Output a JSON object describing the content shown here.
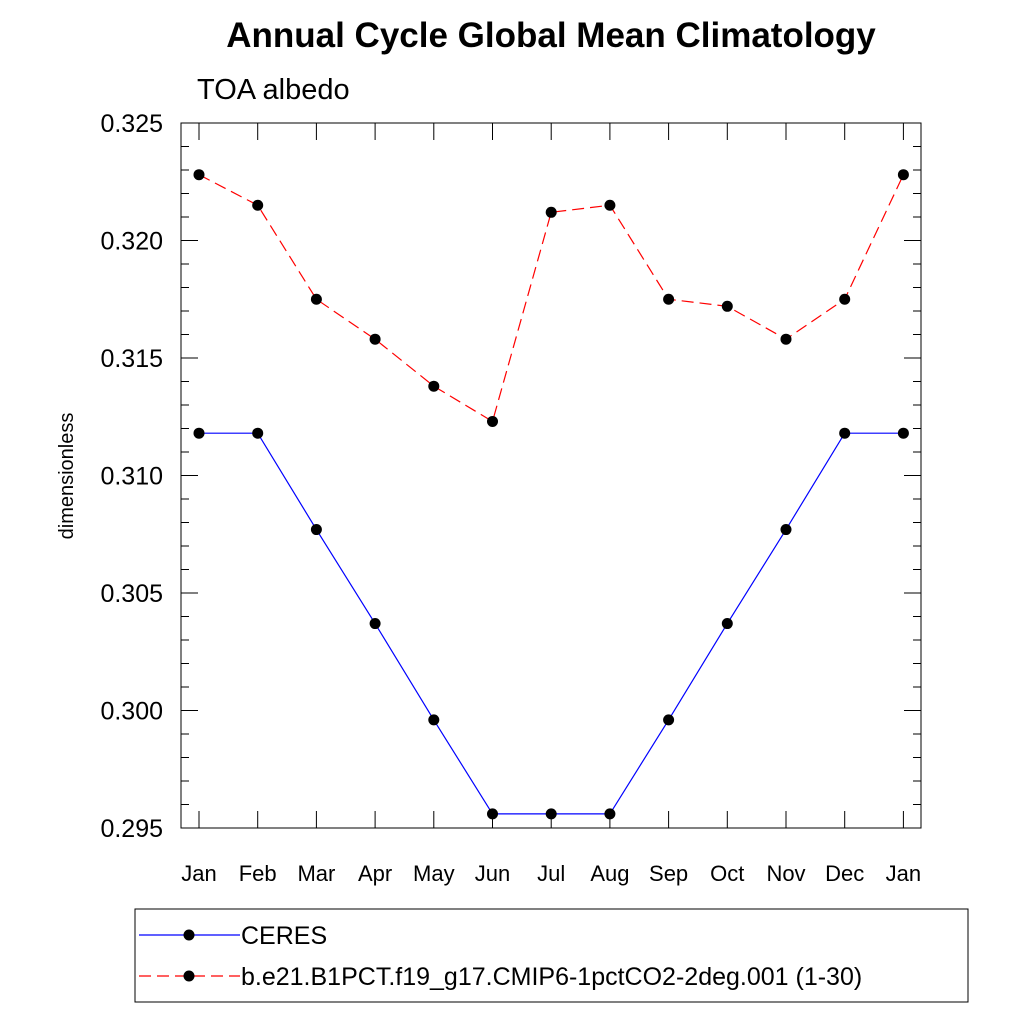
{
  "chart_data": {
    "type": "line",
    "title": "Annual Cycle Global Mean Climatology",
    "subtitle": "TOA albedo",
    "ylabel": "dimensionless",
    "xlabel": "",
    "categories": [
      "Jan",
      "Feb",
      "Mar",
      "Apr",
      "May",
      "Jun",
      "Jul",
      "Aug",
      "Sep",
      "Oct",
      "Nov",
      "Dec",
      "Jan"
    ],
    "ylim": [
      0.295,
      0.325
    ],
    "yticks": [
      "0.325",
      "0.320",
      "0.315",
      "0.310",
      "0.305",
      "0.300",
      "0.295"
    ],
    "ytick_values": [
      0.325,
      0.32,
      0.315,
      0.31,
      0.305,
      0.3,
      0.295
    ],
    "grid": false,
    "legend_placement": "bottom",
    "series": [
      {
        "name": "CERES",
        "color": "#0000ff",
        "line_style": "solid",
        "marker": "filled-circle",
        "values": [
          0.3118,
          0.3118,
          0.3077,
          0.3037,
          0.2996,
          0.2956,
          0.2956,
          0.2956,
          0.2996,
          0.3037,
          0.3077,
          0.3118,
          0.3118
        ]
      },
      {
        "name": "b.e21.B1PCT.f19_g17.CMIP6-1pctCO2-2deg.001 (1-30)",
        "color": "#ff0000",
        "line_style": "dashed",
        "marker": "filled-circle",
        "values": [
          0.3228,
          0.3215,
          0.3175,
          0.3158,
          0.3138,
          0.3123,
          0.3212,
          0.3215,
          0.3175,
          0.3172,
          0.3158,
          0.3175,
          0.3228
        ]
      }
    ]
  }
}
